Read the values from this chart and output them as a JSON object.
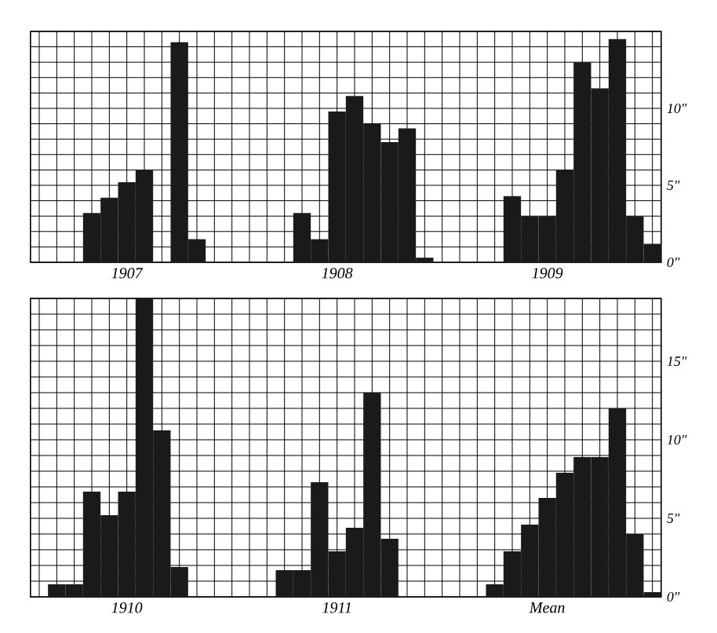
{
  "chart_data": [
    {
      "type": "bar",
      "categories": [
        null,
        null,
        null,
        null,
        null,
        "1907",
        null,
        null,
        null,
        null,
        null,
        null,
        null,
        null,
        null,
        null,
        null,
        "1908",
        null,
        null,
        null,
        null,
        null,
        null,
        null,
        null,
        null,
        null,
        null,
        "1909",
        null,
        null,
        null,
        null,
        null,
        null
      ],
      "values": [
        0,
        0,
        0,
        3.2,
        4.2,
        5.2,
        6.0,
        0,
        14.3,
        1.5,
        0,
        0,
        0,
        0,
        0,
        3.2,
        1.5,
        9.8,
        10.8,
        9.0,
        7.8,
        8.7,
        0.3,
        0,
        0,
        0,
        0,
        4.3,
        3.0,
        3.0,
        6.0,
        13.0,
        11.3,
        14.5,
        3.0,
        1.2
      ],
      "color": "#1a1a1a",
      "ylim": [
        0,
        15
      ],
      "yticks": [
        {
          "value": 0,
          "label": "0\""
        },
        {
          "value": 1,
          "label": null
        },
        {
          "value": 2,
          "label": null
        },
        {
          "value": 3,
          "label": null
        },
        {
          "value": 4,
          "label": null
        },
        {
          "value": 5,
          "label": "5\""
        },
        {
          "value": 6,
          "label": null
        },
        {
          "value": 7,
          "label": null
        },
        {
          "value": 8,
          "label": null
        },
        {
          "value": 9,
          "label": null
        },
        {
          "value": 10,
          "label": "10\""
        },
        {
          "value": 11,
          "label": null
        },
        {
          "value": 12,
          "label": null
        },
        {
          "value": 13,
          "label": null
        },
        {
          "value": 14,
          "label": null
        },
        {
          "value": 15,
          "label": null
        }
      ],
      "grid": true
    },
    {
      "type": "bar",
      "categories": [
        null,
        null,
        null,
        null,
        null,
        "1910",
        null,
        null,
        null,
        null,
        null,
        null,
        null,
        null,
        null,
        null,
        null,
        "1911",
        null,
        null,
        null,
        null,
        null,
        null,
        null,
        null,
        null,
        null,
        null,
        "Mean",
        null,
        null,
        null,
        null,
        null,
        null
      ],
      "values": [
        0,
        0.8,
        0.8,
        6.7,
        5.2,
        6.7,
        19.0,
        10.6,
        1.9,
        0,
        0,
        0,
        0,
        0,
        1.7,
        1.7,
        7.3,
        2.9,
        4.4,
        13.0,
        3.7,
        0,
        0,
        0,
        0,
        0,
        0.8,
        2.9,
        4.6,
        6.3,
        7.9,
        8.9,
        8.9,
        12.0,
        4.0,
        0.3
      ],
      "color": "#1a1a1a",
      "ylim": [
        0,
        19
      ],
      "yticks": [
        {
          "value": 0,
          "label": "0\""
        },
        {
          "value": 1,
          "label": null
        },
        {
          "value": 2,
          "label": null
        },
        {
          "value": 3,
          "label": null
        },
        {
          "value": 4,
          "label": null
        },
        {
          "value": 5,
          "label": "5\""
        },
        {
          "value": 6,
          "label": null
        },
        {
          "value": 7,
          "label": null
        },
        {
          "value": 8,
          "label": null
        },
        {
          "value": 9,
          "label": null
        },
        {
          "value": 10,
          "label": "10\""
        },
        {
          "value": 11,
          "label": null
        },
        {
          "value": 12,
          "label": null
        },
        {
          "value": 13,
          "label": null
        },
        {
          "value": 14,
          "label": null
        },
        {
          "value": 15,
          "label": "15\""
        },
        {
          "value": 16,
          "label": null
        },
        {
          "value": 17,
          "label": null
        },
        {
          "value": 18,
          "label": null
        },
        {
          "value": 19,
          "label": null
        }
      ],
      "grid": true
    }
  ]
}
